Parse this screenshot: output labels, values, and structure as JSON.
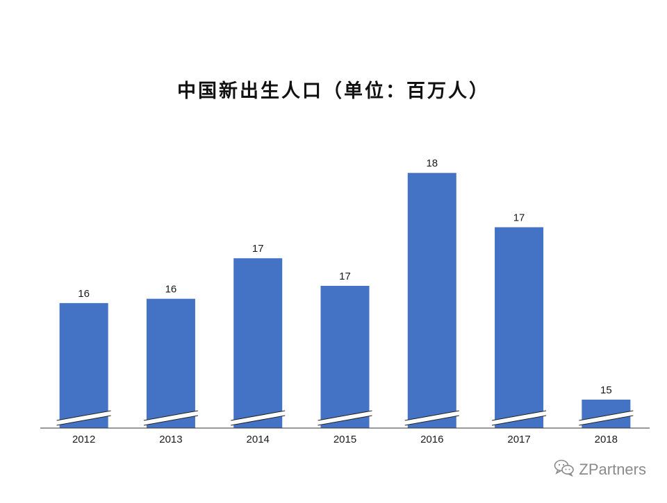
{
  "chart_data": {
    "type": "bar",
    "title": "中国新出生人口（单位：百万人）",
    "xlabel": "",
    "ylabel": "",
    "categories": [
      "2012",
      "2013",
      "2014",
      "2015",
      "2016",
      "2017",
      "2018"
    ],
    "values": [
      16.35,
      16.4,
      16.87,
      16.55,
      17.86,
      17.23,
      15.23
    ],
    "data_labels": [
      "16",
      "16",
      "17",
      "17",
      "18",
      "17",
      "15"
    ],
    "ylim": [
      14.9,
      18.2
    ],
    "axis_break": true,
    "grid": false,
    "legend": "none",
    "bar_color": "#4472C4"
  },
  "watermark": {
    "text": "ZPartners",
    "icon": "wechat-icon"
  }
}
